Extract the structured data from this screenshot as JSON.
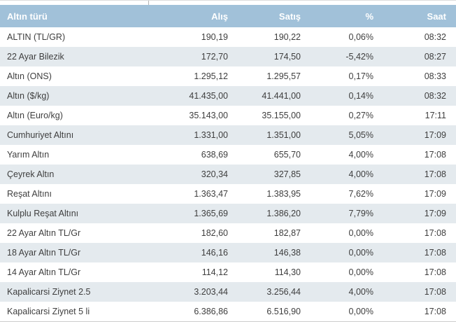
{
  "colors": {
    "header_bg": "#a1c1d9",
    "header_text": "#ffffff",
    "row_even_bg": "#e4eaee",
    "row_odd_bg": "#ffffff",
    "row_text": "#3e3e3e"
  },
  "table": {
    "columns": [
      {
        "key": "type",
        "label": "Altın türü",
        "align": "left"
      },
      {
        "key": "alis",
        "label": "Alış",
        "align": "right"
      },
      {
        "key": "satis",
        "label": "Satış",
        "align": "right"
      },
      {
        "key": "pct",
        "label": "%",
        "align": "right"
      },
      {
        "key": "saat",
        "label": "Saat",
        "align": "right"
      }
    ],
    "rows": [
      [
        "ALTIN (TL/GR)",
        "190,19",
        "190,22",
        "0,06%",
        "08:32"
      ],
      [
        "22 Ayar Bilezik",
        "172,70",
        "174,50",
        "-5,42%",
        "08:27"
      ],
      [
        "Altın (ONS)",
        "1.295,12",
        "1.295,57",
        "0,17%",
        "08:33"
      ],
      [
        "Altın ($/kg)",
        "41.435,00",
        "41.441,00",
        "0,14%",
        "08:32"
      ],
      [
        "Altın (Euro/kg)",
        "35.143,00",
        "35.155,00",
        "0,27%",
        "17:11"
      ],
      [
        "Cumhuriyet Altını",
        "1.331,00",
        "1.351,00",
        "5,05%",
        "17:09"
      ],
      [
        "Yarım Altın",
        "638,69",
        "655,70",
        "4,00%",
        "17:08"
      ],
      [
        "Çeyrek Altın",
        "320,34",
        "327,85",
        "4,00%",
        "17:08"
      ],
      [
        "Reşat Altını",
        "1.363,47",
        "1.383,95",
        "7,62%",
        "17:09"
      ],
      [
        "Kulplu Reşat Altını",
        "1.365,69",
        "1.386,20",
        "7,79%",
        "17:09"
      ],
      [
        "22 Ayar Altın TL/Gr",
        "182,60",
        "182,87",
        "0,00%",
        "17:08"
      ],
      [
        "18 Ayar Altın TL/Gr",
        "146,16",
        "146,38",
        "0,00%",
        "17:08"
      ],
      [
        "14 Ayar Altın TL/Gr",
        "114,12",
        "114,30",
        "0,00%",
        "17:08"
      ],
      [
        "Kapalicarsi Ziynet 2.5",
        "3.203,44",
        "3.256,44",
        "4,00%",
        "17:08"
      ],
      [
        "Kapalicarsi Ziynet 5 li",
        "6.386,86",
        "6.516,90",
        "0,00%",
        "17:08"
      ]
    ]
  }
}
